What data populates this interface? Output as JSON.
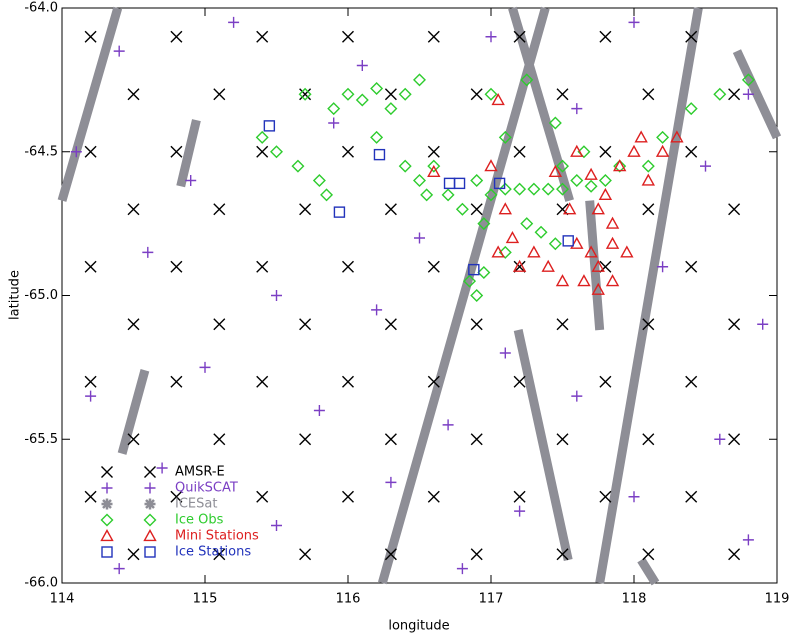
{
  "chart_data": {
    "type": "scatter",
    "xlabel": "longitude",
    "ylabel": "latitude",
    "xlim": [
      114,
      119
    ],
    "ylim": [
      -66,
      -64
    ],
    "xticks": [
      114,
      115,
      116,
      117,
      118,
      119
    ],
    "yticks": [
      {
        "value": -66,
        "label": "-66.0"
      },
      {
        "value": -65.5,
        "label": "-65.5"
      },
      {
        "value": -65,
        "label": "-65.0"
      },
      {
        "value": -64.5,
        "label": "-64.5"
      },
      {
        "value": -64,
        "label": "-64.0"
      }
    ],
    "legend": "lower left",
    "series": [
      {
        "name": "AMSR-E",
        "color": "#000000",
        "marker": "x",
        "x": [
          114.2,
          114.8,
          115.4,
          116.0,
          116.6,
          117.2,
          117.8,
          118.4,
          114.5,
          115.1,
          115.7,
          116.3,
          116.9,
          117.5,
          118.1,
          118.7,
          114.2,
          114.8,
          115.4,
          116.0,
          116.6,
          117.2,
          117.8,
          118.4,
          114.5,
          115.1,
          115.7,
          116.3,
          116.9,
          117.5,
          118.1,
          118.7,
          114.2,
          114.8,
          115.4,
          116.0,
          116.6,
          117.2,
          117.8,
          118.4,
          114.5,
          115.1,
          115.7,
          116.3,
          116.9,
          117.5,
          118.1,
          118.7,
          114.2,
          114.8,
          115.4,
          116.0,
          116.6,
          117.2,
          117.8,
          118.4,
          114.5,
          115.1,
          115.7,
          116.3,
          116.9,
          117.5,
          118.1,
          118.7,
          114.2,
          114.8,
          115.4,
          116.0,
          116.6,
          117.2,
          117.8,
          118.4,
          114.5,
          115.1,
          115.7,
          116.3,
          116.9,
          117.5,
          118.1,
          118.7
        ],
        "y": [
          -64.1,
          -64.1,
          -64.1,
          -64.1,
          -64.1,
          -64.1,
          -64.1,
          -64.1,
          -64.3,
          -64.3,
          -64.3,
          -64.3,
          -64.3,
          -64.3,
          -64.3,
          -64.3,
          -64.5,
          -64.5,
          -64.5,
          -64.5,
          -64.5,
          -64.5,
          -64.5,
          -64.5,
          -64.7,
          -64.7,
          -64.7,
          -64.7,
          -64.7,
          -64.7,
          -64.7,
          -64.7,
          -64.9,
          -64.9,
          -64.9,
          -64.9,
          -64.9,
          -64.9,
          -64.9,
          -64.9,
          -65.1,
          -65.1,
          -65.1,
          -65.1,
          -65.1,
          -65.1,
          -65.1,
          -65.1,
          -65.3,
          -65.3,
          -65.3,
          -65.3,
          -65.3,
          -65.3,
          -65.3,
          -65.3,
          -65.5,
          -65.5,
          -65.5,
          -65.5,
          -65.5,
          -65.5,
          -65.5,
          -65.5,
          -65.7,
          -65.7,
          -65.7,
          -65.7,
          -65.7,
          -65.7,
          -65.7,
          -65.7,
          -65.9,
          -65.9,
          -65.9,
          -65.9,
          -65.9,
          -65.9,
          -65.9,
          -65.9
        ]
      },
      {
        "name": "QuikSCAT",
        "color": "#7b3fc4",
        "marker": "plus",
        "x": [
          114.4,
          115.2,
          116.1,
          117.0,
          118.0,
          118.8,
          114.1,
          114.9,
          115.9,
          116.5,
          117.6,
          118.5,
          114.6,
          115.5,
          116.2,
          117.1,
          118.2,
          118.9,
          114.2,
          115.0,
          115.8,
          116.7,
          117.6,
          118.6,
          114.7,
          115.5,
          116.3,
          117.2,
          118.0,
          118.8,
          114.4,
          116.8
        ],
        "y": [
          -64.15,
          -64.05,
          -64.2,
          -64.1,
          -64.05,
          -64.3,
          -64.5,
          -64.6,
          -64.4,
          -64.8,
          -64.35,
          -64.55,
          -64.85,
          -65.0,
          -65.05,
          -65.2,
          -64.9,
          -65.1,
          -65.35,
          -65.25,
          -65.4,
          -65.45,
          -65.35,
          -65.5,
          -65.6,
          -65.8,
          -65.65,
          -65.75,
          -65.7,
          -65.85,
          -65.95,
          -65.95
        ]
      },
      {
        "name": "ICESat",
        "color": "#8e8e96",
        "marker": "asterisk",
        "x": [
          114.0,
          114.39,
          null,
          114.83,
          114.94,
          null,
          114.42,
          114.58,
          null,
          116.24,
          117.38,
          null,
          117.15,
          117.55,
          null,
          117.19,
          117.54,
          null,
          117.69,
          117.76,
          null,
          117.76,
          118.45,
          null,
          118.72,
          119.0,
          null,
          118.05,
          118.15
        ],
        "y": [
          -64.67,
          -64.0,
          null,
          -64.62,
          -64.39,
          null,
          -65.55,
          -65.26,
          null,
          -66.0,
          -64.0,
          null,
          -64.0,
          -64.67,
          null,
          -65.12,
          -65.92,
          null,
          -64.67,
          -65.12,
          null,
          -66.0,
          -64.0,
          null,
          -64.15,
          -64.45,
          null,
          -65.92,
          -66.0
        ]
      },
      {
        "name": "Ice Obs",
        "color": "#2ecc2e",
        "marker": "diamond",
        "x": [
          115.4,
          115.5,
          115.65,
          115.8,
          115.85,
          115.7,
          115.9,
          116.0,
          116.1,
          116.2,
          116.3,
          116.4,
          116.5,
          116.2,
          116.4,
          116.5,
          116.55,
          116.6,
          116.7,
          116.8,
          116.9,
          117.0,
          117.1,
          117.2,
          117.3,
          117.4,
          117.5,
          117.6,
          117.7,
          117.8,
          117.25,
          117.35,
          117.45,
          116.85,
          116.9,
          116.95,
          117.5,
          117.65,
          117.9,
          118.1,
          118.2,
          118.4,
          118.6,
          118.8,
          117.0,
          117.1,
          116.95,
          117.1,
          117.25,
          117.45
        ],
        "y": [
          -64.45,
          -64.5,
          -64.55,
          -64.6,
          -64.65,
          -64.3,
          -64.35,
          -64.3,
          -64.32,
          -64.28,
          -64.35,
          -64.3,
          -64.25,
          -64.45,
          -64.55,
          -64.6,
          -64.65,
          -64.55,
          -64.65,
          -64.7,
          -64.6,
          -64.65,
          -64.63,
          -64.63,
          -64.63,
          -64.63,
          -64.63,
          -64.6,
          -64.62,
          -64.6,
          -64.75,
          -64.78,
          -64.82,
          -64.95,
          -65.0,
          -64.92,
          -64.55,
          -64.5,
          -64.55,
          -64.55,
          -64.45,
          -64.35,
          -64.3,
          -64.25,
          -64.3,
          -64.45,
          -64.75,
          -64.85,
          -64.25,
          -64.4
        ]
      },
      {
        "name": "Mini Stations",
        "color": "#dd2020",
        "marker": "triangle",
        "x": [
          117.05,
          117.0,
          117.1,
          117.15,
          117.05,
          117.2,
          117.3,
          117.4,
          117.5,
          117.55,
          117.6,
          117.7,
          117.75,
          117.65,
          117.75,
          117.85,
          117.95,
          117.85,
          117.8,
          117.75,
          117.9,
          118.0,
          118.1,
          118.2,
          118.3,
          118.05,
          117.6,
          117.7,
          116.6,
          117.45,
          117.85
        ],
        "y": [
          -64.32,
          -64.55,
          -64.7,
          -64.8,
          -64.85,
          -64.9,
          -64.85,
          -64.9,
          -64.95,
          -64.7,
          -64.82,
          -64.85,
          -64.9,
          -64.95,
          -64.98,
          -64.95,
          -64.85,
          -64.75,
          -64.65,
          -64.7,
          -64.55,
          -64.5,
          -64.6,
          -64.5,
          -64.45,
          -64.45,
          -64.5,
          -64.58,
          -64.57,
          -64.57,
          -64.82
        ]
      },
      {
        "name": "Ice Stations",
        "color": "#2233bb",
        "marker": "square",
        "x": [
          115.45,
          115.94,
          116.22,
          116.71,
          116.78,
          117.06,
          116.88,
          117.54
        ],
        "y": [
          -64.41,
          -64.71,
          -64.51,
          -64.61,
          -64.61,
          -64.61,
          -64.91,
          -64.81
        ]
      }
    ]
  }
}
